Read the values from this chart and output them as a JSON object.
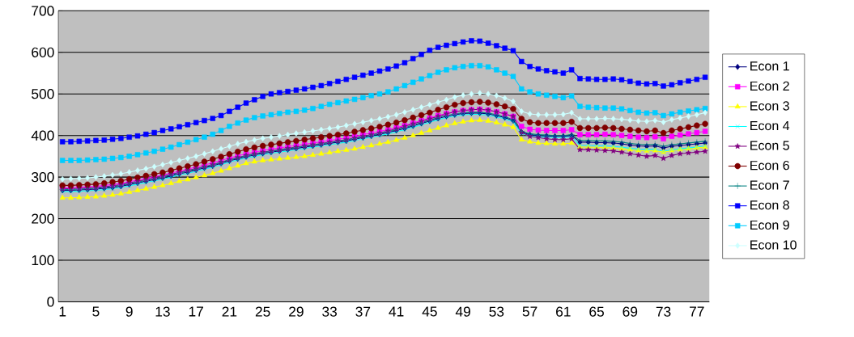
{
  "chart_data": {
    "type": "line",
    "categories": [
      "1",
      null,
      null,
      null,
      "5",
      null,
      null,
      null,
      "9",
      null,
      null,
      null,
      "13",
      null,
      null,
      null,
      "17",
      null,
      null,
      null,
      "21",
      null,
      null,
      null,
      "25",
      null,
      null,
      null,
      "29",
      null,
      null,
      null,
      "33",
      null,
      null,
      null,
      "37",
      null,
      null,
      null,
      "41",
      null,
      null,
      null,
      "45",
      null,
      null,
      null,
      "49",
      null,
      null,
      null,
      "53",
      null,
      null,
      null,
      "57",
      null,
      null,
      null,
      "61",
      null,
      null,
      null,
      "65",
      null,
      null,
      null,
      "69",
      null,
      null,
      null,
      "73",
      null,
      null,
      null,
      "77",
      null
    ],
    "series": [
      {
        "name": "Econ 1",
        "color": "#000080",
        "marker": "diamond",
        "values": [
          268,
          268,
          269,
          270,
          271,
          273,
          275,
          278,
          282,
          286,
          290,
          294,
          298,
          303,
          308,
          312,
          317,
          322,
          327,
          333,
          339,
          344,
          349,
          353,
          357,
          360,
          363,
          366,
          369,
          372,
          375,
          378,
          381,
          384,
          387,
          391,
          395,
          399,
          403,
          407,
          412,
          417,
          423,
          429,
          435,
          441,
          446,
          450,
          453,
          454,
          454,
          452,
          448,
          443,
          436,
          408,
          402,
          400,
          399,
          398,
          398,
          400,
          384,
          384,
          383,
          383,
          382,
          380,
          377,
          375,
          374,
          375,
          370,
          374,
          376,
          378,
          380,
          382
        ]
      },
      {
        "name": "Econ 2",
        "color": "#ff00ff",
        "marker": "square",
        "values": [
          275,
          275,
          276,
          277,
          278,
          280,
          282,
          285,
          289,
          293,
          297,
          301,
          305,
          310,
          314,
          319,
          324,
          329,
          334,
          340,
          346,
          351,
          356,
          360,
          364,
          367,
          370,
          373,
          376,
          379,
          382,
          385,
          388,
          391,
          394,
          398,
          402,
          406,
          410,
          414,
          419,
          424,
          430,
          436,
          442,
          448,
          453,
          457,
          460,
          462,
          463,
          461,
          457,
          452,
          446,
          422,
          415,
          413,
          412,
          412,
          412,
          414,
          402,
          402,
          402,
          403,
          402,
          400,
          398,
          396,
          395,
          397,
          392,
          398,
          401,
          404,
          407,
          410
        ]
      },
      {
        "name": "Econ 3",
        "color": "#ffff00",
        "marker": "triangle",
        "values": [
          250,
          250,
          251,
          252,
          253,
          255,
          257,
          260,
          264,
          268,
          272,
          276,
          280,
          285,
          290,
          294,
          299,
          304,
          309,
          315,
          321,
          327,
          333,
          337,
          340,
          342,
          344,
          346,
          348,
          350,
          353,
          356,
          359,
          362,
          365,
          368,
          372,
          376,
          380,
          384,
          389,
          394,
          400,
          406,
          412,
          418,
          424,
          429,
          433,
          436,
          437,
          435,
          431,
          426,
          420,
          390,
          385,
          382,
          381,
          380,
          380,
          382,
          372,
          372,
          371,
          371,
          370,
          368,
          366,
          364,
          363,
          364,
          360,
          364,
          366,
          368,
          370,
          372
        ]
      },
      {
        "name": "Econ 4",
        "color": "#00ffff",
        "marker": "cross",
        "values": [
          265,
          265,
          266,
          267,
          268,
          270,
          272,
          275,
          279,
          283,
          287,
          291,
          295,
          300,
          305,
          309,
          314,
          319,
          324,
          330,
          336,
          341,
          346,
          350,
          354,
          357,
          360,
          363,
          366,
          369,
          372,
          375,
          378,
          381,
          384,
          388,
          392,
          396,
          400,
          404,
          409,
          414,
          420,
          426,
          432,
          438,
          443,
          447,
          450,
          451,
          451,
          449,
          445,
          440,
          433,
          405,
          399,
          397,
          396,
          395,
          395,
          397,
          376,
          376,
          375,
          375,
          374,
          372,
          369,
          367,
          366,
          367,
          362,
          366,
          368,
          370,
          372,
          375
        ]
      },
      {
        "name": "Econ 5",
        "color": "#800080",
        "marker": "star",
        "values": [
          272,
          272,
          273,
          274,
          275,
          277,
          279,
          282,
          286,
          290,
          294,
          298,
          302,
          307,
          311,
          316,
          320,
          325,
          330,
          336,
          342,
          347,
          352,
          356,
          360,
          363,
          366,
          369,
          372,
          375,
          378,
          381,
          384,
          387,
          390,
          394,
          398,
          402,
          406,
          411,
          416,
          422,
          428,
          434,
          440,
          446,
          452,
          457,
          460,
          462,
          463,
          461,
          457,
          452,
          446,
          408,
          398,
          395,
          392,
          390,
          390,
          392,
          366,
          366,
          365,
          364,
          363,
          360,
          356,
          353,
          350,
          352,
          345,
          352,
          356,
          358,
          360,
          362
        ]
      },
      {
        "name": "Econ 6",
        "color": "#800000",
        "marker": "circle",
        "values": [
          280,
          280,
          281,
          282,
          283,
          285,
          288,
          291,
          295,
          299,
          303,
          307,
          311,
          316,
          321,
          326,
          331,
          337,
          343,
          349,
          355,
          361,
          367,
          371,
          375,
          378,
          381,
          384,
          387,
          390,
          393,
          396,
          399,
          402,
          405,
          409,
          413,
          417,
          421,
          426,
          431,
          437,
          443,
          449,
          455,
          462,
          468,
          474,
          478,
          480,
          481,
          479,
          475,
          470,
          464,
          440,
          432,
          430,
          430,
          430,
          430,
          433,
          418,
          418,
          418,
          419,
          418,
          416,
          414,
          412,
          410,
          412,
          406,
          412,
          416,
          420,
          424,
          428
        ]
      },
      {
        "name": "Econ 7",
        "color": "#008080",
        "marker": "plus",
        "values": [
          270,
          270,
          271,
          272,
          273,
          275,
          277,
          280,
          284,
          288,
          292,
          296,
          300,
          305,
          310,
          314,
          319,
          324,
          329,
          335,
          341,
          346,
          351,
          355,
          359,
          362,
          365,
          368,
          371,
          374,
          377,
          380,
          383,
          386,
          389,
          393,
          397,
          401,
          405,
          409,
          414,
          419,
          425,
          431,
          437,
          443,
          448,
          452,
          455,
          456,
          456,
          454,
          450,
          445,
          438,
          410,
          404,
          402,
          401,
          400,
          400,
          402,
          388,
          388,
          387,
          387,
          386,
          384,
          381,
          379,
          378,
          379,
          374,
          378,
          380,
          382,
          384,
          386
        ]
      },
      {
        "name": "Econ 8",
        "color": "#0000ff",
        "marker": "square",
        "values": [
          385,
          385,
          386,
          387,
          388,
          389,
          391,
          393,
          396,
          399,
          403,
          407,
          412,
          416,
          421,
          426,
          431,
          436,
          441,
          448,
          458,
          468,
          478,
          486,
          494,
          500,
          503,
          506,
          509,
          512,
          516,
          520,
          525,
          530,
          535,
          540,
          545,
          550,
          555,
          560,
          567,
          575,
          585,
          595,
          605,
          612,
          617,
          621,
          625,
          628,
          627,
          622,
          616,
          610,
          604,
          578,
          566,
          560,
          556,
          553,
          550,
          558,
          537,
          536,
          535,
          535,
          536,
          534,
          530,
          526,
          524,
          525,
          519,
          522,
          527,
          531,
          535,
          540
        ]
      },
      {
        "name": "Econ 9",
        "color": "#00ccff",
        "marker": "square",
        "values": [
          340,
          340,
          340,
          341,
          342,
          343,
          345,
          347,
          350,
          354,
          358,
          362,
          367,
          372,
          378,
          384,
          390,
          396,
          403,
          412,
          422,
          430,
          437,
          443,
          447,
          450,
          453,
          456,
          458,
          461,
          465,
          470,
          475,
          479,
          483,
          487,
          491,
          496,
          500,
          505,
          512,
          520,
          528,
          536,
          544,
          552,
          558,
          563,
          566,
          568,
          568,
          565,
          558,
          550,
          542,
          512,
          505,
          500,
          497,
          494,
          491,
          495,
          470,
          468,
          467,
          466,
          466,
          464,
          460,
          456,
          454,
          455,
          448,
          452,
          456,
          459,
          462,
          465
        ]
      },
      {
        "name": "Econ 10",
        "color": "#ccffff",
        "marker": "diamond",
        "values": [
          295,
          296,
          297,
          298,
          300,
          302,
          305,
          308,
          312,
          316,
          320,
          325,
          330,
          335,
          340,
          345,
          350,
          356,
          362,
          368,
          374,
          380,
          385,
          389,
          393,
          396,
          399,
          402,
          405,
          408,
          411,
          414,
          417,
          420,
          424,
          428,
          432,
          436,
          440,
          445,
          450,
          456,
          462,
          468,
          474,
          480,
          486,
          492,
          497,
          500,
          502,
          500,
          496,
          490,
          482,
          458,
          452,
          450,
          450,
          450,
          451,
          455,
          440,
          440,
          440,
          441,
          440,
          439,
          437,
          435,
          434,
          436,
          432,
          438,
          442,
          446,
          450,
          455
        ]
      }
    ],
    "ylim": [
      0,
      700
    ],
    "yticks": [
      0,
      100,
      200,
      300,
      400,
      500,
      600,
      700
    ],
    "grid": "y",
    "legend": "right"
  }
}
